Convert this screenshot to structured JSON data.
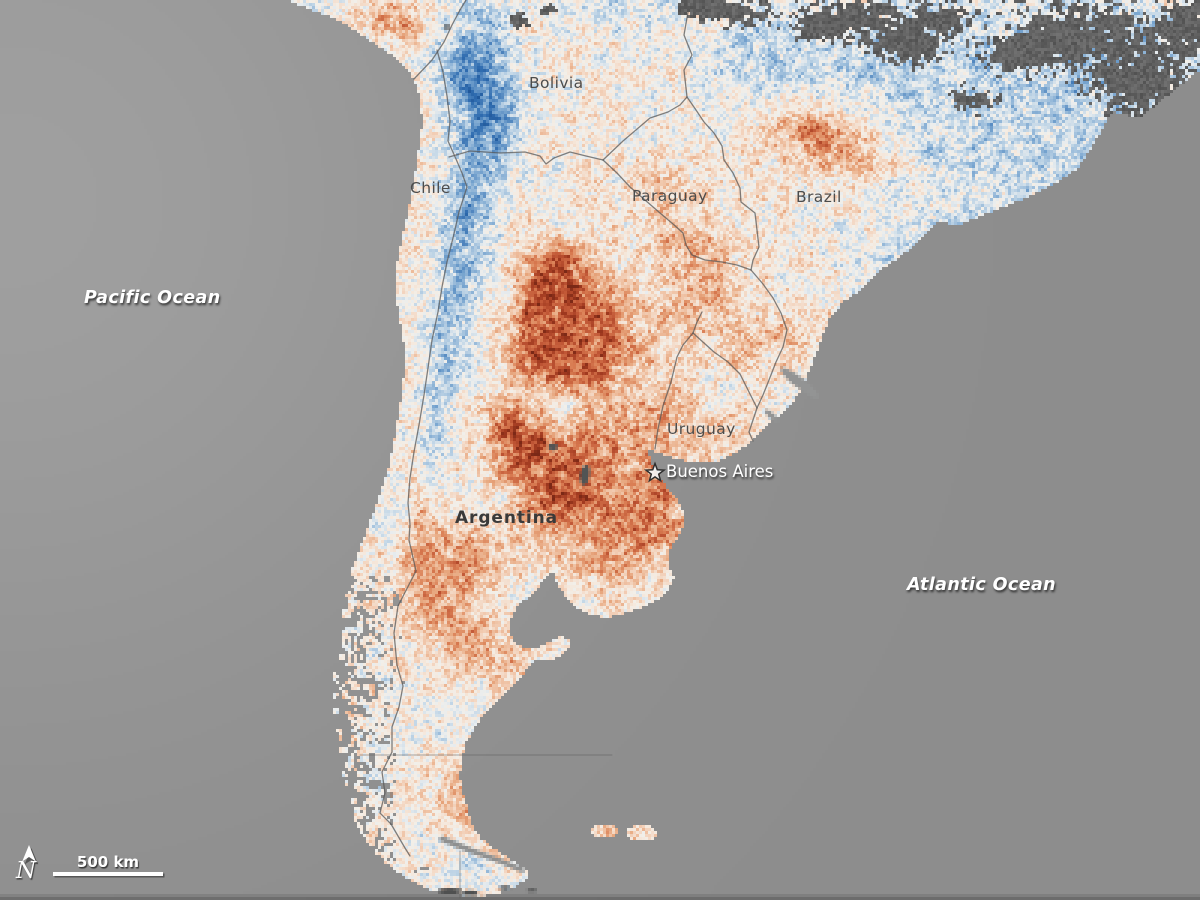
{
  "map": {
    "region_labels": {
      "pacific_ocean": "Pacific Ocean",
      "atlantic_ocean": "Atlantic Ocean"
    },
    "countries": {
      "bolivia": "Bolivia",
      "chile": "Chile",
      "paraguay": "Paraguay",
      "brazil": "Brazil",
      "uruguay": "Uruguay",
      "argentina": "Argentina"
    },
    "city": {
      "buenos_aires": "Buenos Aires"
    },
    "scale_bar": {
      "label": "500 km"
    },
    "compass": {
      "label": "N"
    },
    "colors": {
      "ocean": "#8f9090",
      "ocean_light": "#a9aaaa",
      "land_base": "#f2efe9",
      "warm_max": "#7e2410",
      "cool_max": "#1a4e8f",
      "cloud": "#666666",
      "border": "#585858",
      "label_dark": "#4c4c4c",
      "label_light": "#ffffff"
    }
  }
}
